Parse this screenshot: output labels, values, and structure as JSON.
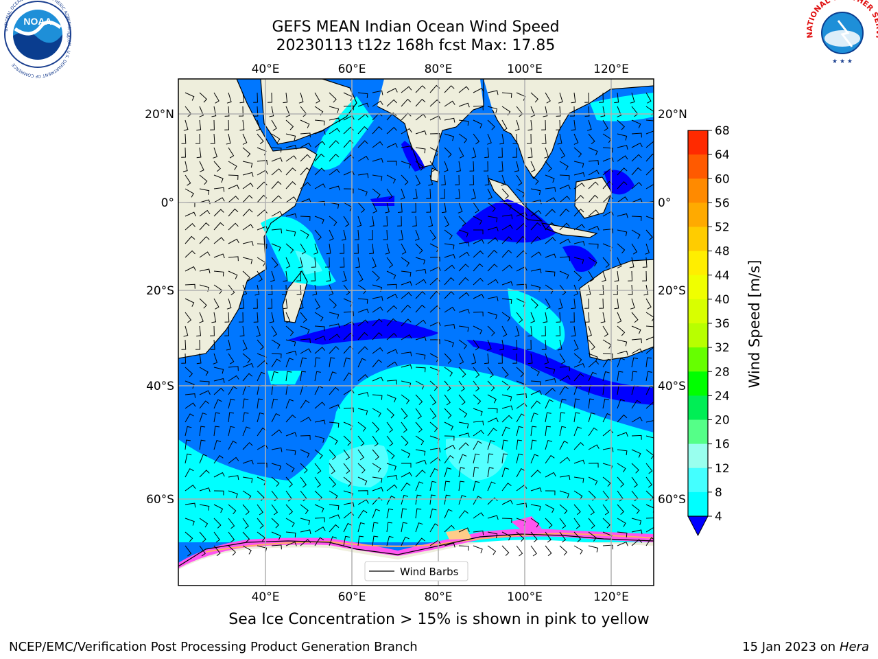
{
  "header": {
    "title_line1": "GEFS MEAN Indian Ocean Wind Speed",
    "title_line2": "20230113 t12z 168h fcst   Max: 17.85"
  },
  "logos": {
    "left": {
      "name": "noaa-logo",
      "text": "NOAA",
      "ring_text": "NATIONAL OCEANIC AND ATMOSPHERIC ADMINISTRATION · U.S. DEPARTMENT OF COMMERCE"
    },
    "right": {
      "name": "nws-logo",
      "ring_text": "NATIONAL WEATHER SERVICE"
    }
  },
  "map": {
    "lon_ticks_top": [
      "40°E",
      "60°E",
      "80°E",
      "100°E",
      "120°E"
    ],
    "lon_ticks_bottom": [
      "40°E",
      "60°E",
      "80°E",
      "100°E",
      "120°E"
    ],
    "lat_ticks_left": [
      "20°N",
      "0°",
      "20°S",
      "40°S",
      "60°S"
    ],
    "lat_ticks_right": [
      "20°N",
      "0°",
      "20°S",
      "40°S",
      "60°S"
    ],
    "legend_label": "Wind Barbs",
    "colors": {
      "land": "#eeeedc",
      "ice_white": "#ffffff",
      "ice_pink": "#ff55ee",
      "ice_orange": "#ffb060"
    }
  },
  "colorbar": {
    "label": "Wind Speed [m/s]",
    "ticks": [
      "68",
      "64",
      "60",
      "56",
      "52",
      "48",
      "44",
      "40",
      "36",
      "32",
      "28",
      "24",
      "20",
      "16",
      "12",
      "8",
      "4"
    ],
    "colors": [
      "#ff0000",
      "#ff2a00",
      "#ff5a00",
      "#ff8a00",
      "#ffaa00",
      "#ffcc00",
      "#ffee00",
      "#f0ff00",
      "#d8ff00",
      "#b8ff00",
      "#66ff00",
      "#00ff00",
      "#00ee55",
      "#55ff88",
      "#99ffee",
      "#44ffff",
      "#00ffff",
      "#0077ff"
    ],
    "under_color": "#0000ff"
  },
  "footer": {
    "note": "Sea Ice Concentration > 15% is shown in pink to yellow",
    "left": "NCEP/EMC/Verification Post Processing Product Generation Branch",
    "right_date": "15 Jan 2023 on ",
    "right_host": "Hera"
  }
}
